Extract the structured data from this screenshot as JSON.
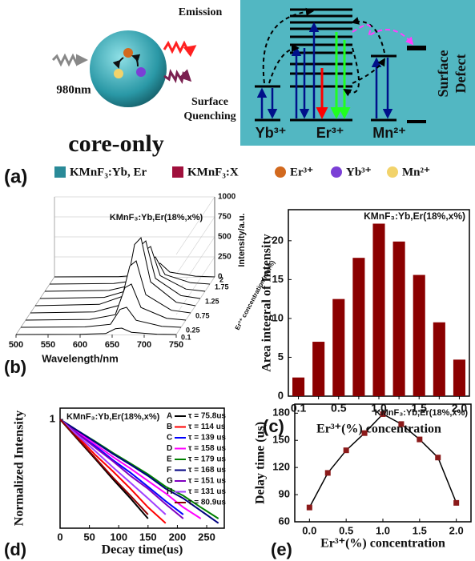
{
  "panel_a": {
    "label": "(a)",
    "emission": "Emission",
    "excitation": "980nm",
    "quenching": [
      "Surface",
      "Quenching"
    ],
    "core": "core-only",
    "ions": [
      "Yb³⁺",
      "Er³⁺",
      "Mn²⁺"
    ],
    "defect": [
      "Surface",
      "Defect"
    ],
    "legend": [
      {
        "label": "KMnF₃:Yb, Er",
        "color": "#2a8a98",
        "shape": "square"
      },
      {
        "label": "KMnF₃:X",
        "color": "#a0103c",
        "shape": "square"
      },
      {
        "label": "Er³⁺",
        "color": "#d2691e",
        "shape": "circle"
      },
      {
        "label": "Yb³⁺",
        "color": "#7b3fd6",
        "shape": "circle"
      },
      {
        "label": "Mn²⁺",
        "color": "#f2d36b",
        "shape": "circle"
      }
    ]
  },
  "panel_labels": [
    "(b)",
    "(c)",
    "(d)",
    "(e)"
  ],
  "chart_data": [
    {
      "type": "waterfall",
      "title": "KMnF₃:Yb,Er(18%,x%)",
      "xlabel": "Wavelength/nm",
      "zlabel": "Intensity/a.u.",
      "depth_label": "Er³⁺ concentration(mol%)",
      "x": [
        500,
        600,
        640,
        655,
        665,
        680,
        720,
        750
      ],
      "depth_categories": [
        "0.1",
        "0.25",
        null,
        "0.75",
        null,
        "1.25",
        null,
        "1.75",
        "2"
      ],
      "series": [
        {
          "values": [
            0,
            2,
            12,
            72,
            80,
            28,
            4,
            0
          ]
        },
        {
          "values": [
            0,
            5,
            38,
            225,
            250,
            88,
            13,
            0
          ]
        },
        {
          "values": [
            0,
            9,
            68,
            405,
            450,
            158,
            23,
            0
          ]
        },
        {
          "values": [
            0,
            13,
            98,
            585,
            650,
            228,
            33,
            0
          ]
        },
        {
          "values": [
            0,
            17,
            128,
            765,
            850,
            298,
            43,
            0
          ]
        },
        {
          "values": [
            0,
            14,
            108,
            648,
            720,
            252,
            36,
            0
          ]
        },
        {
          "values": [
            0,
            11,
            84,
            504,
            560,
            196,
            28,
            0
          ]
        },
        {
          "values": [
            0,
            7,
            51,
            306,
            340,
            119,
            17,
            0
          ]
        },
        {
          "values": [
            0,
            3,
            26,
            153,
            170,
            60,
            9,
            0
          ]
        }
      ],
      "color": "#000000",
      "xlim": [
        500,
        750
      ],
      "xticks": [
        500,
        550,
        600,
        650,
        700,
        750
      ],
      "zlim": [
        0,
        1000
      ],
      "zticks": [
        0,
        250,
        500,
        750,
        1000
      ]
    },
    {
      "type": "bar",
      "title": "KMnF₃:Yb,Er(18%,x%)",
      "xlabel": "Er³⁺(%) concentration",
      "ylabel": "Area integral of Intensity",
      "categories": [
        "0.1",
        null,
        "0.5",
        null,
        "1.0",
        null,
        "1.5",
        null,
        "2.0"
      ],
      "values": [
        2.4,
        7,
        12.5,
        17.8,
        22.2,
        19.9,
        15.6,
        9.5,
        4.7
      ],
      "color": "#8b0000",
      "ylim": [
        0,
        24
      ],
      "yticks": [
        0,
        5,
        10,
        15,
        20
      ]
    },
    {
      "type": "line",
      "log_y": true,
      "title": "KMnF₃:Yb,Er(18%,x%)",
      "xlabel": "Decay time(us)",
      "ylabel": "Normalized Intensity",
      "x": [
        0,
        30,
        60,
        90,
        120,
        150,
        180,
        210,
        240,
        270
      ],
      "series": [
        {
          "name": "A",
          "label": "τ = 75.8us",
          "color": "#000000",
          "values": [
            1,
            0.63,
            0.4,
            0.25,
            0.16,
            0.1,
            null,
            null,
            null,
            null
          ]
        },
        {
          "name": "B",
          "label": "τ = 114 us",
          "color": "#ff0000",
          "values": [
            1,
            0.67,
            0.44,
            0.3,
            0.2,
            0.13,
            0.09,
            null,
            null,
            null
          ]
        },
        {
          "name": "C",
          "label": "τ = 139 us",
          "color": "#0000ff",
          "values": [
            1,
            0.73,
            0.54,
            0.39,
            0.29,
            0.21,
            0.15,
            0.11,
            null,
            null
          ]
        },
        {
          "name": "D",
          "label": "τ = 158 us",
          "color": "#ff00ff",
          "values": [
            1,
            0.75,
            0.56,
            0.42,
            0.32,
            0.24,
            0.18,
            0.13,
            0.1,
            null
          ]
        },
        {
          "name": "E",
          "label": "τ = 179 us",
          "color": "#008000",
          "values": [
            1,
            0.77,
            0.6,
            0.46,
            0.36,
            0.28,
            0.21,
            0.17,
            0.13,
            0.1
          ]
        },
        {
          "name": "F",
          "label": "τ = 168 us",
          "color": "#000080",
          "values": [
            1,
            0.77,
            0.59,
            0.45,
            0.35,
            0.27,
            0.2,
            0.16,
            0.12,
            0.09
          ]
        },
        {
          "name": "G",
          "label": "τ = 151 us",
          "color": "#8000c0",
          "values": [
            1,
            0.72,
            0.52,
            0.38,
            0.27,
            0.2,
            0.14,
            0.1,
            null,
            null
          ]
        },
        {
          "name": "H",
          "label": "τ = 131 us",
          "color": "#a040ff",
          "values": [
            1,
            0.69,
            0.48,
            0.33,
            0.23,
            0.16,
            0.11,
            null,
            null,
            null
          ]
        },
        {
          "name": null,
          "label": "τ = 80.9us",
          "color": "#8b0000",
          "values": [
            1,
            0.64,
            0.41,
            0.26,
            0.17,
            0.11,
            null,
            null,
            null,
            null
          ]
        }
      ],
      "xlim": [
        0,
        280
      ],
      "xticks": [
        0,
        50,
        100,
        150,
        200,
        250
      ],
      "ylim": [
        0.08,
        1.3
      ],
      "yticks": [
        1
      ]
    },
    {
      "type": "line",
      "markers": true,
      "title": "KMnF₃:Yb,Er(18%,x%)",
      "xlabel": "Er³⁺(%) concentration",
      "ylabel": "Delay time (us)",
      "x": [
        0,
        0.25,
        0.5,
        0.75,
        1,
        1.25,
        1.5,
        1.75,
        2
      ],
      "series": [
        {
          "color": "#000000",
          "marker_color": "#8b1a1a",
          "values": [
            75.8,
            114,
            139,
            158,
            179,
            168,
            151,
            131,
            80.9
          ]
        }
      ],
      "xlim": [
        -0.2,
        2.2
      ],
      "xticks": [
        {
          "value": 0,
          "label": "0.0"
        },
        0.5,
        {
          "value": 1,
          "label": "1.0"
        },
        1.5,
        {
          "value": 2,
          "label": "2.0"
        }
      ],
      "ylim": [
        60,
        190
      ],
      "yticks": [
        60,
        90,
        120,
        150,
        180
      ]
    }
  ]
}
